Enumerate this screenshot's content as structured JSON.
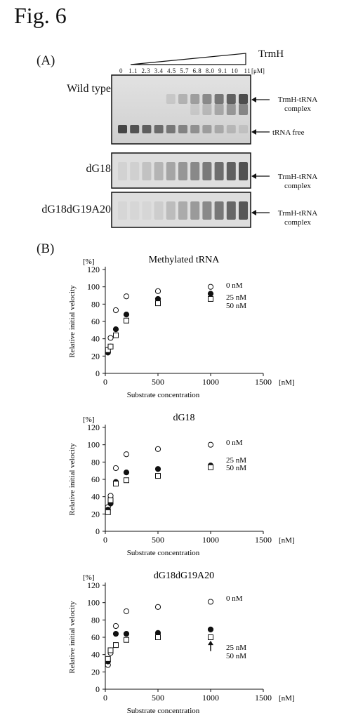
{
  "figure": {
    "title": "Fig. 6",
    "panel_a_label": "(A)",
    "panel_b_label": "(B)"
  },
  "gel": {
    "enzyme_label": "TrmH",
    "concentrations": "0   1.1  2.3  3.4  4.5  5.7  6.8  8.0  9.1  10   11",
    "unit": "[μM]",
    "rows": [
      {
        "label": "Wild type",
        "annotations": [
          "TrmH-tRNA complex",
          "tRNA free"
        ]
      },
      {
        "label": "dG18",
        "annotations": [
          "TrmH-tRNA complex"
        ]
      },
      {
        "label": "dG18dG19A20",
        "annotations": [
          "TrmH-tRNA complex"
        ]
      }
    ]
  },
  "chart_data": [
    {
      "type": "scatter",
      "title": "Methylated tRNA",
      "xlabel": "Substrate concentration",
      "ylabel": "Relative initial velocity",
      "x_unit": "[nM]",
      "y_unit": "[%]",
      "xlim": [
        0,
        1500
      ],
      "ylim": [
        0,
        120
      ],
      "xticks": [
        0,
        500,
        1000,
        1500
      ],
      "yticks": [
        0,
        20,
        40,
        60,
        80,
        100,
        120
      ],
      "series": [
        {
          "name": "0 nM",
          "marker": "open-circle",
          "x": [
            25,
            50,
            100,
            200,
            500,
            1000
          ],
          "y": [
            25,
            41,
            73,
            89,
            95,
            100
          ]
        },
        {
          "name": "25 nM",
          "marker": "filled-circle",
          "x": [
            25,
            50,
            100,
            200,
            500,
            1000
          ],
          "y": [
            24,
            31,
            51,
            68,
            86,
            92
          ]
        },
        {
          "name": "50 nM",
          "marker": "open-square",
          "x": [
            25,
            50,
            100,
            200,
            500,
            1000
          ],
          "y": [
            27,
            31,
            44,
            61,
            81,
            86
          ]
        }
      ]
    },
    {
      "type": "scatter",
      "title": "dG18",
      "xlabel": "Substrate concentration",
      "ylabel": "Relative initial velocity",
      "x_unit": "[nM]",
      "y_unit": "[%]",
      "xlim": [
        0,
        1500
      ],
      "ylim": [
        0,
        120
      ],
      "xticks": [
        0,
        500,
        1000,
        1500
      ],
      "yticks": [
        0,
        20,
        40,
        60,
        80,
        100,
        120
      ],
      "series": [
        {
          "name": "0 nM",
          "marker": "open-circle",
          "x": [
            25,
            50,
            100,
            200,
            500,
            1000
          ],
          "y": [
            28,
            41,
            73,
            89,
            95,
            100
          ]
        },
        {
          "name": "25 nM",
          "marker": "filled-circle",
          "x": [
            25,
            50,
            100,
            200,
            500,
            1000
          ],
          "y": [
            25,
            32,
            57,
            68,
            72,
            76
          ]
        },
        {
          "name": "50 nM",
          "marker": "open-square",
          "x": [
            25,
            50,
            100,
            200,
            500,
            1000
          ],
          "y": [
            22,
            36,
            55,
            59,
            64,
            74
          ]
        }
      ]
    },
    {
      "type": "scatter",
      "title": "dG18dG19A20",
      "xlabel": "Substrate concentration",
      "ylabel": "Relative initial velocity",
      "x_unit": "[nM]",
      "y_unit": "[%]",
      "xlim": [
        0,
        1500
      ],
      "ylim": [
        0,
        120
      ],
      "xticks": [
        0,
        500,
        1000,
        1500
      ],
      "yticks": [
        0,
        20,
        40,
        60,
        80,
        100,
        120
      ],
      "series": [
        {
          "name": "0 nM",
          "marker": "open-circle",
          "x": [
            25,
            50,
            100,
            200,
            500,
            1000
          ],
          "y": [
            28,
            42,
            73,
            90,
            95,
            101
          ]
        },
        {
          "name": "25 nM",
          "marker": "filled-circle",
          "x": [
            25,
            50,
            100,
            200,
            500,
            1000
          ],
          "y": [
            32,
            45,
            64,
            64,
            65,
            69
          ]
        },
        {
          "name": "50 nM",
          "marker": "open-square",
          "x": [
            25,
            50,
            100,
            200,
            500,
            1000
          ],
          "y": [
            35,
            45,
            51,
            57,
            60,
            60
          ]
        }
      ]
    }
  ]
}
